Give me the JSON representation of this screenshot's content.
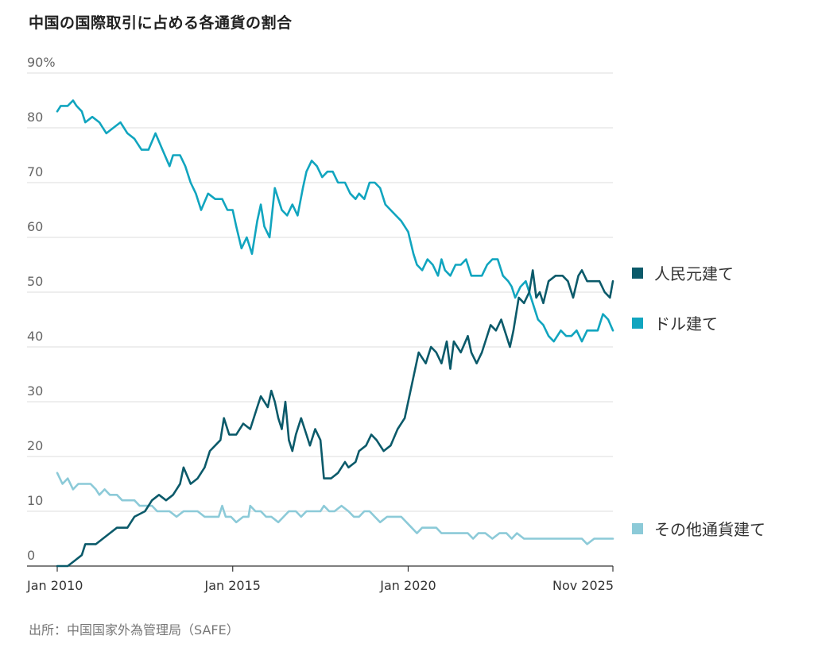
{
  "title": "中国の国際取引に占める各通貨の割合",
  "source": "出所：中国国家外為管理局（SAFE）",
  "chart_data": {
    "type": "line",
    "title": "中国の国際取引に占める各通貨の割合",
    "ylabel_unit": "%",
    "ylim": [
      0,
      90
    ],
    "yticks": [
      "0",
      "10",
      "20",
      "30",
      "40",
      "50",
      "60",
      "70",
      "80",
      "90"
    ],
    "xlim": [
      2010.0,
      2025.833
    ],
    "xticks": [
      {
        "label": "Jan 2010",
        "value": 2010.0
      },
      {
        "label": "Jan 2015",
        "value": 2015.0
      },
      {
        "label": "Jan 2020",
        "value": 2020.0
      },
      {
        "label": "Nov 2025",
        "value": 2025.833
      }
    ],
    "grid": true,
    "legend_position": "right",
    "series": [
      {
        "name": "人民元建て",
        "color": "#0b5a6a",
        "points": [
          [
            2010.0,
            0
          ],
          [
            2010.3,
            0
          ],
          [
            2010.5,
            1
          ],
          [
            2010.7,
            2
          ],
          [
            2010.8,
            4
          ],
          [
            2011.1,
            4
          ],
          [
            2011.3,
            5
          ],
          [
            2011.5,
            6
          ],
          [
            2011.7,
            7
          ],
          [
            2012.0,
            7
          ],
          [
            2012.2,
            9
          ],
          [
            2012.5,
            10
          ],
          [
            2012.7,
            12
          ],
          [
            2012.9,
            13
          ],
          [
            2013.1,
            12
          ],
          [
            2013.3,
            13
          ],
          [
            2013.5,
            15
          ],
          [
            2013.6,
            18
          ],
          [
            2013.8,
            15
          ],
          [
            2014.0,
            16
          ],
          [
            2014.2,
            18
          ],
          [
            2014.35,
            21
          ],
          [
            2014.5,
            22
          ],
          [
            2014.65,
            23
          ],
          [
            2014.75,
            27
          ],
          [
            2014.9,
            24
          ],
          [
            2015.1,
            24
          ],
          [
            2015.3,
            26
          ],
          [
            2015.5,
            25
          ],
          [
            2015.7,
            29
          ],
          [
            2015.8,
            31
          ],
          [
            2016.0,
            29
          ],
          [
            2016.1,
            32
          ],
          [
            2016.2,
            30
          ],
          [
            2016.3,
            27
          ],
          [
            2016.4,
            25
          ],
          [
            2016.5,
            30
          ],
          [
            2016.6,
            23
          ],
          [
            2016.7,
            21
          ],
          [
            2016.8,
            24
          ],
          [
            2016.95,
            27
          ],
          [
            2017.1,
            24
          ],
          [
            2017.2,
            22
          ],
          [
            2017.35,
            25
          ],
          [
            2017.5,
            23
          ],
          [
            2017.6,
            16
          ],
          [
            2017.8,
            16
          ],
          [
            2018.0,
            17
          ],
          [
            2018.2,
            19
          ],
          [
            2018.3,
            18
          ],
          [
            2018.5,
            19
          ],
          [
            2018.6,
            21
          ],
          [
            2018.8,
            22
          ],
          [
            2018.95,
            24
          ],
          [
            2019.1,
            23
          ],
          [
            2019.3,
            21
          ],
          [
            2019.5,
            22
          ],
          [
            2019.7,
            25
          ],
          [
            2019.9,
            27
          ],
          [
            2020.0,
            30
          ],
          [
            2020.2,
            36
          ],
          [
            2020.3,
            39
          ],
          [
            2020.5,
            37
          ],
          [
            2020.65,
            40
          ],
          [
            2020.8,
            39
          ],
          [
            2020.95,
            37
          ],
          [
            2021.1,
            41
          ],
          [
            2021.2,
            36
          ],
          [
            2021.3,
            41
          ],
          [
            2021.5,
            39
          ],
          [
            2021.7,
            42
          ],
          [
            2021.8,
            39
          ],
          [
            2021.95,
            37
          ],
          [
            2022.1,
            39
          ],
          [
            2022.2,
            41
          ],
          [
            2022.35,
            44
          ],
          [
            2022.5,
            43
          ],
          [
            2022.65,
            45
          ],
          [
            2022.75,
            43
          ],
          [
            2022.9,
            40
          ],
          [
            2023.0,
            43
          ],
          [
            2023.15,
            49
          ],
          [
            2023.3,
            48
          ],
          [
            2023.45,
            50
          ],
          [
            2023.55,
            54
          ],
          [
            2023.65,
            49
          ],
          [
            2023.75,
            50
          ],
          [
            2023.85,
            48
          ],
          [
            2024.0,
            52
          ],
          [
            2024.2,
            53
          ],
          [
            2024.4,
            53
          ],
          [
            2024.55,
            52
          ],
          [
            2024.7,
            49
          ],
          [
            2024.85,
            53
          ],
          [
            2024.95,
            54
          ],
          [
            2025.1,
            52
          ],
          [
            2025.3,
            52
          ],
          [
            2025.45,
            52
          ],
          [
            2025.6,
            50
          ],
          [
            2025.75,
            49
          ],
          [
            2025.833,
            52
          ]
        ]
      },
      {
        "name": "ドル建て",
        "color": "#11a5bf",
        "points": [
          [
            2010.0,
            83
          ],
          [
            2010.1,
            84
          ],
          [
            2010.3,
            84
          ],
          [
            2010.45,
            85
          ],
          [
            2010.55,
            84
          ],
          [
            2010.7,
            83
          ],
          [
            2010.8,
            81
          ],
          [
            2011.0,
            82
          ],
          [
            2011.2,
            81
          ],
          [
            2011.4,
            79
          ],
          [
            2011.6,
            80
          ],
          [
            2011.8,
            81
          ],
          [
            2012.0,
            79
          ],
          [
            2012.2,
            78
          ],
          [
            2012.4,
            76
          ],
          [
            2012.6,
            76
          ],
          [
            2012.8,
            79
          ],
          [
            2013.0,
            76
          ],
          [
            2013.2,
            73
          ],
          [
            2013.3,
            75
          ],
          [
            2013.5,
            75
          ],
          [
            2013.65,
            73
          ],
          [
            2013.8,
            70
          ],
          [
            2013.95,
            68
          ],
          [
            2014.1,
            65
          ],
          [
            2014.3,
            68
          ],
          [
            2014.5,
            67
          ],
          [
            2014.7,
            67
          ],
          [
            2014.85,
            65
          ],
          [
            2015.0,
            65
          ],
          [
            2015.1,
            62
          ],
          [
            2015.25,
            58
          ],
          [
            2015.4,
            60
          ],
          [
            2015.55,
            57
          ],
          [
            2015.7,
            63
          ],
          [
            2015.8,
            66
          ],
          [
            2015.9,
            62
          ],
          [
            2016.05,
            60
          ],
          [
            2016.2,
            69
          ],
          [
            2016.4,
            65
          ],
          [
            2016.55,
            64
          ],
          [
            2016.7,
            66
          ],
          [
            2016.85,
            64
          ],
          [
            2017.0,
            69
          ],
          [
            2017.1,
            72
          ],
          [
            2017.25,
            74
          ],
          [
            2017.4,
            73
          ],
          [
            2017.55,
            71
          ],
          [
            2017.7,
            72
          ],
          [
            2017.85,
            72
          ],
          [
            2018.0,
            70
          ],
          [
            2018.2,
            70
          ],
          [
            2018.35,
            68
          ],
          [
            2018.5,
            67
          ],
          [
            2018.6,
            68
          ],
          [
            2018.75,
            67
          ],
          [
            2018.9,
            70
          ],
          [
            2019.05,
            70
          ],
          [
            2019.2,
            69
          ],
          [
            2019.35,
            66
          ],
          [
            2019.5,
            65
          ],
          [
            2019.65,
            64
          ],
          [
            2019.8,
            63
          ],
          [
            2019.9,
            62
          ],
          [
            2020.0,
            61
          ],
          [
            2020.15,
            57
          ],
          [
            2020.25,
            55
          ],
          [
            2020.4,
            54
          ],
          [
            2020.55,
            56
          ],
          [
            2020.7,
            55
          ],
          [
            2020.85,
            53
          ],
          [
            2020.95,
            56
          ],
          [
            2021.05,
            54
          ],
          [
            2021.2,
            53
          ],
          [
            2021.35,
            55
          ],
          [
            2021.5,
            55
          ],
          [
            2021.65,
            56
          ],
          [
            2021.8,
            53
          ],
          [
            2021.95,
            53
          ],
          [
            2022.1,
            53
          ],
          [
            2022.25,
            55
          ],
          [
            2022.4,
            56
          ],
          [
            2022.55,
            56
          ],
          [
            2022.7,
            53
          ],
          [
            2022.85,
            52
          ],
          [
            2022.95,
            51
          ],
          [
            2023.05,
            49
          ],
          [
            2023.2,
            51
          ],
          [
            2023.35,
            52
          ],
          [
            2023.45,
            50
          ],
          [
            2023.55,
            48
          ],
          [
            2023.7,
            45
          ],
          [
            2023.85,
            44
          ],
          [
            2024.0,
            42
          ],
          [
            2024.15,
            41
          ],
          [
            2024.35,
            43
          ],
          [
            2024.5,
            42
          ],
          [
            2024.65,
            42
          ],
          [
            2024.8,
            43
          ],
          [
            2024.95,
            41
          ],
          [
            2025.1,
            43
          ],
          [
            2025.25,
            43
          ],
          [
            2025.4,
            43
          ],
          [
            2025.55,
            46
          ],
          [
            2025.7,
            45
          ],
          [
            2025.833,
            43
          ]
        ]
      },
      {
        "name": "その他通貨建て",
        "color": "#8ccad8",
        "points": [
          [
            2010.0,
            17
          ],
          [
            2010.15,
            15
          ],
          [
            2010.3,
            16
          ],
          [
            2010.45,
            14
          ],
          [
            2010.6,
            15
          ],
          [
            2010.8,
            15
          ],
          [
            2010.95,
            15
          ],
          [
            2011.1,
            14
          ],
          [
            2011.2,
            13
          ],
          [
            2011.35,
            14
          ],
          [
            2011.5,
            13
          ],
          [
            2011.7,
            13
          ],
          [
            2011.85,
            12
          ],
          [
            2012.0,
            12
          ],
          [
            2012.2,
            12
          ],
          [
            2012.35,
            11
          ],
          [
            2012.5,
            11
          ],
          [
            2012.7,
            11
          ],
          [
            2012.85,
            10
          ],
          [
            2013.0,
            10
          ],
          [
            2013.2,
            10
          ],
          [
            2013.4,
            9
          ],
          [
            2013.6,
            10
          ],
          [
            2013.8,
            10
          ],
          [
            2014.0,
            10
          ],
          [
            2014.2,
            9
          ],
          [
            2014.4,
            9
          ],
          [
            2014.6,
            9
          ],
          [
            2014.7,
            11
          ],
          [
            2014.8,
            9
          ],
          [
            2014.95,
            9
          ],
          [
            2015.1,
            8
          ],
          [
            2015.3,
            9
          ],
          [
            2015.45,
            9
          ],
          [
            2015.5,
            11
          ],
          [
            2015.65,
            10
          ],
          [
            2015.8,
            10
          ],
          [
            2015.95,
            9
          ],
          [
            2016.1,
            9
          ],
          [
            2016.3,
            8
          ],
          [
            2016.45,
            9
          ],
          [
            2016.6,
            10
          ],
          [
            2016.8,
            10
          ],
          [
            2016.95,
            9
          ],
          [
            2017.1,
            10
          ],
          [
            2017.3,
            10
          ],
          [
            2017.5,
            10
          ],
          [
            2017.6,
            11
          ],
          [
            2017.75,
            10
          ],
          [
            2017.9,
            10
          ],
          [
            2018.1,
            11
          ],
          [
            2018.3,
            10
          ],
          [
            2018.45,
            9
          ],
          [
            2018.6,
            9
          ],
          [
            2018.75,
            10
          ],
          [
            2018.9,
            10
          ],
          [
            2019.05,
            9
          ],
          [
            2019.2,
            8
          ],
          [
            2019.4,
            9
          ],
          [
            2019.6,
            9
          ],
          [
            2019.8,
            9
          ],
          [
            2019.95,
            8
          ],
          [
            2020.1,
            7
          ],
          [
            2020.25,
            6
          ],
          [
            2020.4,
            7
          ],
          [
            2020.6,
            7
          ],
          [
            2020.8,
            7
          ],
          [
            2020.95,
            6
          ],
          [
            2021.1,
            6
          ],
          [
            2021.3,
            6
          ],
          [
            2021.5,
            6
          ],
          [
            2021.7,
            6
          ],
          [
            2021.85,
            5
          ],
          [
            2022.0,
            6
          ],
          [
            2022.2,
            6
          ],
          [
            2022.4,
            5
          ],
          [
            2022.6,
            6
          ],
          [
            2022.8,
            6
          ],
          [
            2022.95,
            5
          ],
          [
            2023.1,
            6
          ],
          [
            2023.3,
            5
          ],
          [
            2023.5,
            5
          ],
          [
            2023.7,
            5
          ],
          [
            2023.85,
            5
          ],
          [
            2024.0,
            5
          ],
          [
            2024.2,
            5
          ],
          [
            2024.4,
            5
          ],
          [
            2024.6,
            5
          ],
          [
            2024.8,
            5
          ],
          [
            2024.95,
            5
          ],
          [
            2025.1,
            4
          ],
          [
            2025.3,
            5
          ],
          [
            2025.5,
            5
          ],
          [
            2025.7,
            5
          ],
          [
            2025.833,
            5
          ]
        ]
      }
    ]
  }
}
